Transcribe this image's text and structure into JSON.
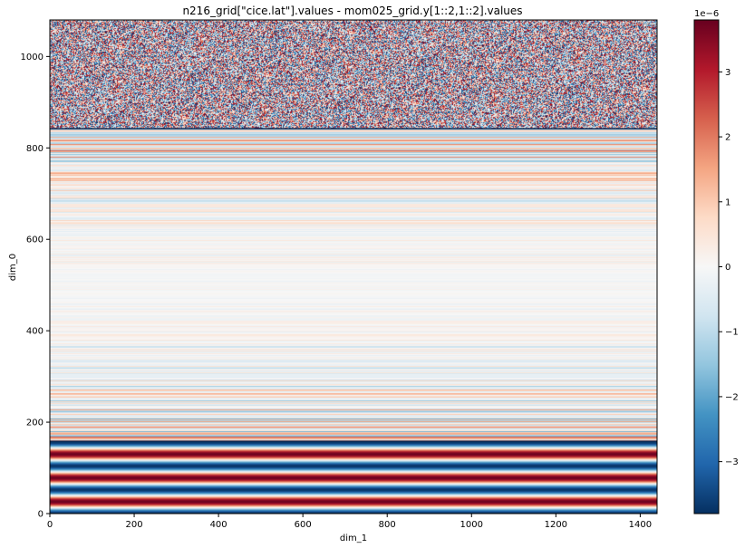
{
  "chart_data": {
    "type": "heatmap",
    "title": "n216_grid[\"cice.lat\"].values - mom025_grid.y[1::2,1::2].values",
    "xlabel": "dim_1",
    "ylabel": "dim_0",
    "xlim": [
      0,
      1440
    ],
    "ylim": [
      0,
      1080
    ],
    "xticks": [
      "0",
      "200",
      "400",
      "600",
      "800",
      "1000",
      "1200",
      "1400"
    ],
    "yticks": [
      "0",
      "200",
      "400",
      "600",
      "800",
      "1000"
    ],
    "colorbar": {
      "colormap": "RdBu_r",
      "vmin": -3.8e-06,
      "vmax": 3.8e-06,
      "offset_text": "1e−6",
      "ticks": [
        "−3",
        "−2",
        "−1",
        "0",
        "1",
        "2",
        "3"
      ]
    },
    "regions": [
      {
        "rows": [
          0,
          158
        ],
        "pattern": "smooth horizontal bands, full amplitude",
        "band_period_rows": 52
      },
      {
        "rows": [
          158,
          842
        ],
        "pattern": "horizontal stripes varying by row, amplitude smallest near row 500"
      },
      {
        "rows": [
          842,
          1080
        ],
        "pattern": "pixel-level noise, full amplitude"
      }
    ],
    "boundary_lines_rows": [
      158,
      842
    ]
  }
}
